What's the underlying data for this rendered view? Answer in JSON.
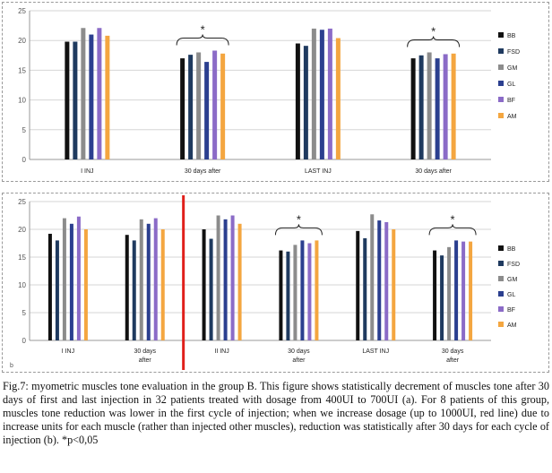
{
  "chart_data": [
    {
      "type": "bar",
      "ylim": [
        0,
        25
      ],
      "yticks": [
        0,
        5,
        10,
        15,
        20,
        25
      ],
      "categories": [
        [
          "I INJ"
        ],
        [
          "30 days after"
        ],
        [
          "LAST INJ"
        ],
        [
          "30 days after"
        ]
      ],
      "series": [
        {
          "name": "BB",
          "color": "#111111",
          "values": [
            19.8,
            17.0,
            19.5,
            17.0
          ]
        },
        {
          "name": "FSD",
          "color": "#1f3a5f",
          "values": [
            19.8,
            17.6,
            19.1,
            17.5
          ]
        },
        {
          "name": "GM",
          "color": "#8c8c8c",
          "values": [
            22.1,
            18.0,
            22.0,
            18.0
          ]
        },
        {
          "name": "GL",
          "color": "#2b3f8f",
          "values": [
            21.0,
            16.4,
            21.8,
            17.0
          ]
        },
        {
          "name": "BF",
          "color": "#8b6bc7",
          "values": [
            22.1,
            18.3,
            22.0,
            17.7
          ]
        },
        {
          "name": "AM",
          "color": "#f4a640",
          "values": [
            20.8,
            17.8,
            20.4,
            17.8
          ]
        }
      ],
      "significance": [
        "",
        "*",
        "",
        "*"
      ],
      "grid": true,
      "legend_position": "right"
    },
    {
      "type": "bar",
      "ylim": [
        0,
        25
      ],
      "yticks": [
        0,
        5,
        10,
        15,
        20,
        25
      ],
      "categories": [
        [
          "I INJ"
        ],
        [
          "30 days",
          "after"
        ],
        [
          "II INJ"
        ],
        [
          "30 days",
          "after"
        ],
        [
          "LAST INJ"
        ],
        [
          "30 days",
          "after"
        ]
      ],
      "series": [
        {
          "name": "BB",
          "color": "#111111",
          "values": [
            19.2,
            19.0,
            20.0,
            16.2,
            19.7,
            16.2
          ]
        },
        {
          "name": "FSD",
          "color": "#1f3a5f",
          "values": [
            18.0,
            18.0,
            18.3,
            16.0,
            18.4,
            15.3
          ]
        },
        {
          "name": "GM",
          "color": "#8c8c8c",
          "values": [
            22.0,
            21.8,
            22.5,
            17.2,
            22.7,
            16.8
          ]
        },
        {
          "name": "GL",
          "color": "#2b3f8f",
          "values": [
            21.0,
            21.0,
            21.8,
            18.0,
            21.6,
            18.0
          ]
        },
        {
          "name": "BF",
          "color": "#8b6bc7",
          "values": [
            22.3,
            22.0,
            22.5,
            17.5,
            21.3,
            17.8
          ]
        },
        {
          "name": "AM",
          "color": "#f4a640",
          "values": [
            20.0,
            20.0,
            21.0,
            18.0,
            20.0,
            17.8
          ]
        }
      ],
      "significance": [
        "",
        "",
        "",
        "*",
        "",
        "*"
      ],
      "panel_label": "b",
      "grid": true,
      "legend_position": "right",
      "dosage_change_line_color": "#e0201b"
    }
  ],
  "caption": "Fig.7: myometric muscles tone evaluation in the group B. This figure shows statistically decrement of muscles tone after 30 days of first and last injection in 32 patients treated with dosage from 400UI to 700UI (a). For 8 patients of this group, muscles tone reduction was lower in the first cycle of injection; when we increase dosage (up to 1000UI, red line) due to increase units for each muscle (rather than injected other muscles), reduction was statistically after 30 days for each cycle of injection (b). *p<0,05"
}
